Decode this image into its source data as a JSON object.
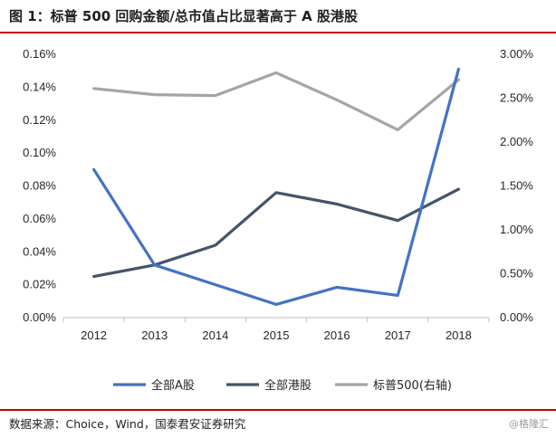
{
  "header": {
    "title": "图 1：标普 500 回购金额/总市值占比显著高于 A 股港股"
  },
  "chart_data": {
    "type": "line",
    "categories": [
      "2012",
      "2013",
      "2014",
      "2015",
      "2016",
      "2017",
      "2018"
    ],
    "series": [
      {
        "name": "全部A股",
        "axis": "left",
        "color": "#4472c4",
        "values": [
          0.0009,
          0.00032,
          0.0002,
          8e-05,
          0.000185,
          0.000135,
          0.00151
        ]
      },
      {
        "name": "全部港股",
        "axis": "left",
        "color": "#44546a",
        "values": [
          0.00025,
          0.00032,
          0.00044,
          0.00076,
          0.00069,
          0.00059,
          0.00078
        ]
      },
      {
        "name": "标普500(右轴)",
        "axis": "right",
        "color": "#a5a5a5",
        "values": [
          0.0261,
          0.0254,
          0.0253,
          0.0279,
          0.0248,
          0.0214,
          0.0271
        ]
      }
    ],
    "left_axis": {
      "ylim": [
        0,
        0.0016
      ],
      "ticks": [
        "0.00%",
        "0.02%",
        "0.04%",
        "0.06%",
        "0.08%",
        "0.10%",
        "0.12%",
        "0.14%",
        "0.16%"
      ]
    },
    "right_axis": {
      "ylim": [
        0,
        0.03
      ],
      "ticks": [
        "0.00%",
        "0.50%",
        "1.00%",
        "1.50%",
        "2.00%",
        "2.50%",
        "3.00%"
      ]
    },
    "grid": false,
    "legend_position": "bottom"
  },
  "footer": {
    "source": "数据来源：Choice，Wind，国泰君安证券研究"
  },
  "watermark": {
    "text": "@格隆汇"
  }
}
